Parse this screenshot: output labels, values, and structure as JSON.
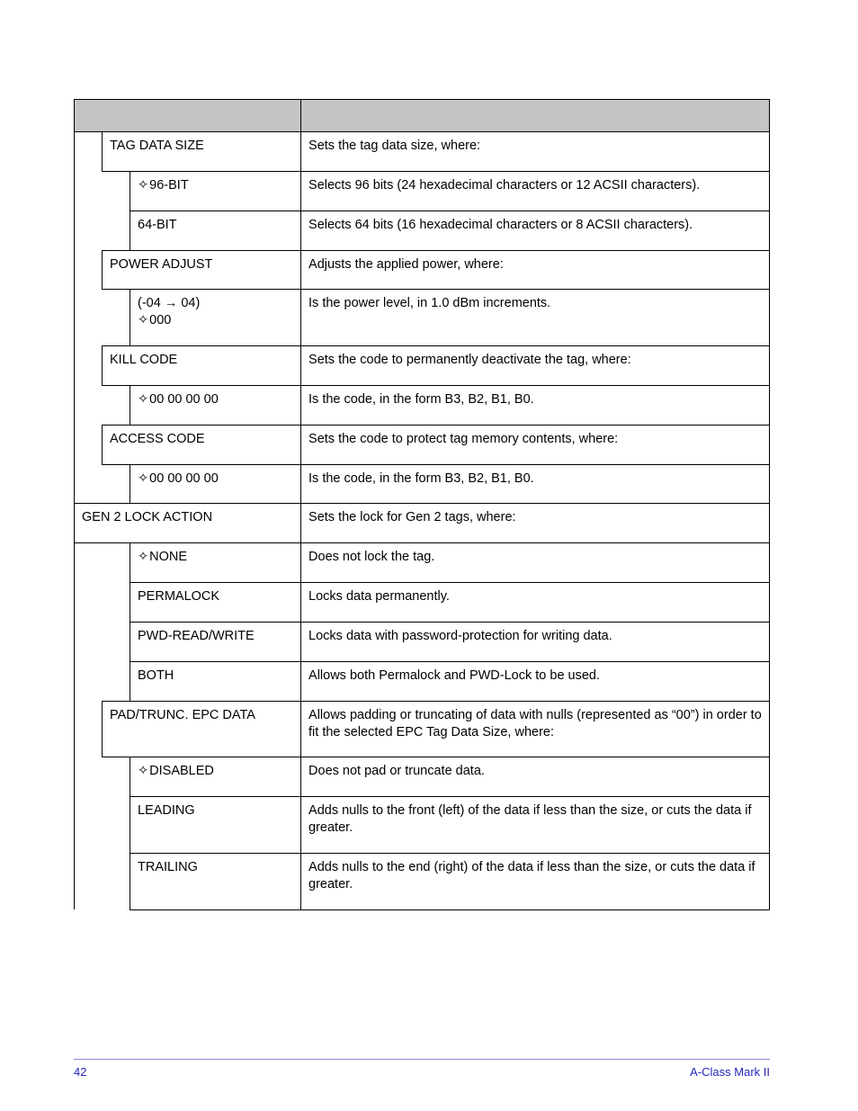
{
  "footer": {
    "page": "42",
    "title": "A-Class Mark II"
  },
  "rows": [
    {
      "indent": 1,
      "label": "TAG DATA SIZE",
      "desc": "Sets the tag data size, where:"
    },
    {
      "indent": 2,
      "label": "96-BIT",
      "diamond": true,
      "desc": "Selects 96 bits (24 hexadecimal characters or 12 ACSII characters).",
      "tight": true
    },
    {
      "indent": 2,
      "label": "64-BIT",
      "desc": "Selects 64 bits (16 hexadecimal characters or 8 ACSII characters).",
      "tight": true
    },
    {
      "indent": 1,
      "label": "POWER ADJUST",
      "desc": "Adjusts the applied power, where:"
    },
    {
      "indent": 2,
      "label": "(-04  →  04)\n000",
      "diamond_line2": true,
      "desc": "Is the power level, in 1.0 dBm increments."
    },
    {
      "indent": 1,
      "label": "KILL CODE",
      "desc": "Sets the code to permanently deactivate the tag, where:",
      "justify": true,
      "tight": true
    },
    {
      "indent": 2,
      "label": "00  00  00  00",
      "diamond": true,
      "desc": "Is the code, in the form B3, B2, B1, B0."
    },
    {
      "indent": 1,
      "label": "ACCESS CODE",
      "desc": "Sets the code to protect tag memory contents, where:"
    },
    {
      "indent": 2,
      "label": "00  00  00  00",
      "diamond": true,
      "desc": "Is the code, in the form B3, B2, B1, B0."
    },
    {
      "indent": 0,
      "label": "GEN 2 LOCK ACTION",
      "desc": "Sets the lock for Gen 2 tags, where:"
    },
    {
      "indent": 2,
      "label": "NONE",
      "diamond": true,
      "desc": "Does not lock the tag."
    },
    {
      "indent": 2,
      "label": "PERMALOCK",
      "desc": "Locks data permanently."
    },
    {
      "indent": 2,
      "label": "PWD-READ/WRITE",
      "desc": "Locks data with password-protection for writing data."
    },
    {
      "indent": 2,
      "label": "BOTH",
      "desc": "Allows both Permalock and PWD-Lock to be used."
    },
    {
      "indent": 1,
      "label": "PAD/TRUNC. EPC DATA",
      "desc": "Allows padding or truncating of data with nulls (represented as “00”) in order to fit the selected EPC Tag Data Size, where:",
      "tight": true
    },
    {
      "indent": 2,
      "label": "DISABLED",
      "diamond": true,
      "desc": "Does not pad or truncate data."
    },
    {
      "indent": 2,
      "label": "LEADING",
      "desc": "Adds nulls to the front (left) of the data if less than the size, or cuts the data if greater.",
      "tight": true
    },
    {
      "indent": 2,
      "label": "TRAILING",
      "desc": "Adds nulls to the end (right) of the data if less than the size, or cuts the data if greater.",
      "tight": true
    }
  ]
}
